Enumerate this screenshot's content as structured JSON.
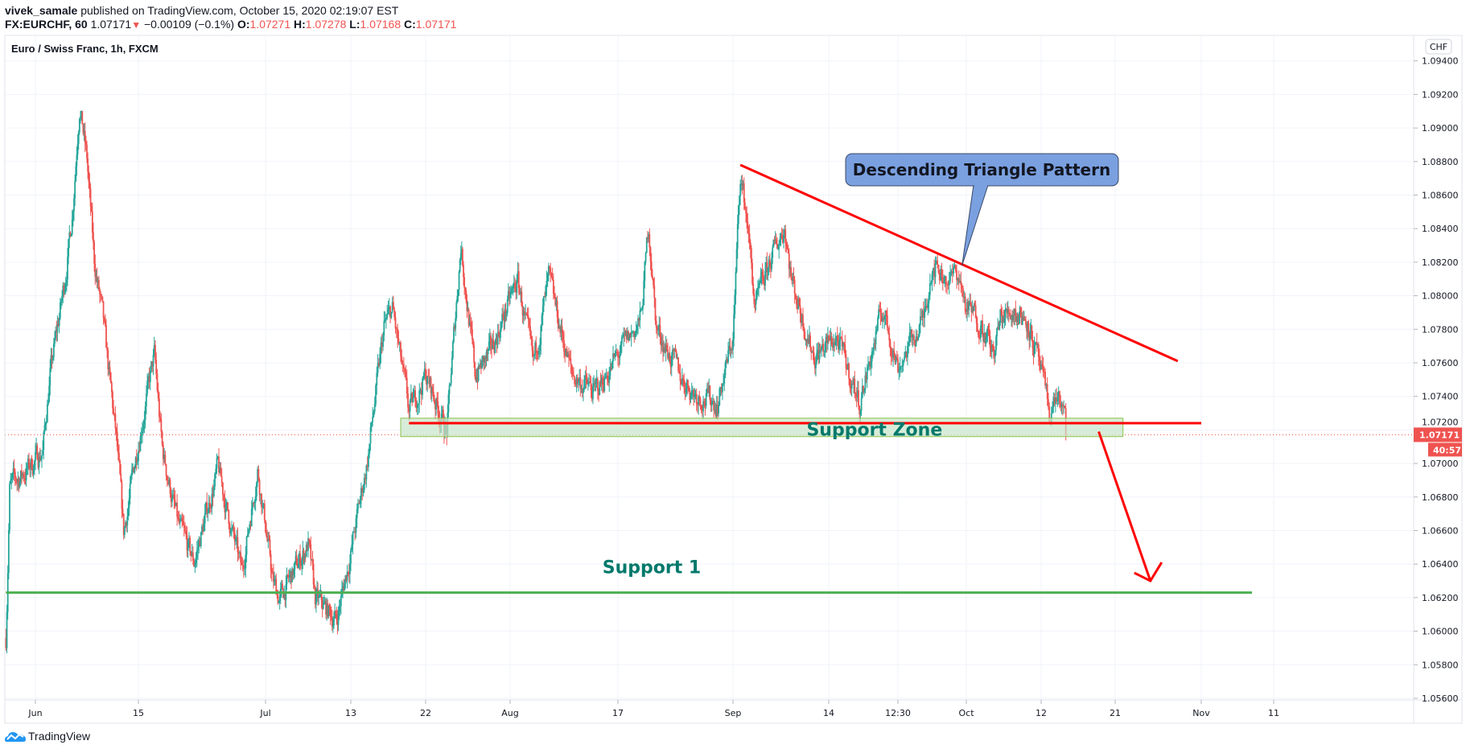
{
  "header": {
    "author": "vivek_samale",
    "published_text": "published on TradingView.com, October 15, 2020 02:19:07 EST",
    "symbol": "FX:EURCHF, 60",
    "last_price": "1.07171",
    "change": "−0.00109 (−0.1%)",
    "change_direction_icon": "triangle-down-icon",
    "open_label": "O:",
    "open": "1.07271",
    "high_label": "H:",
    "high": "1.07278",
    "low_label": "L:",
    "low": "1.07168",
    "close_label": "C:",
    "close": "1.07171"
  },
  "footer": {
    "brand": "TradingView"
  },
  "colors": {
    "up": "#26a69a",
    "down": "#ef5350",
    "grid": "#f0f3fa",
    "annotation_red": "#ff0000",
    "support1_line": "#4caf50",
    "zone_fill": "#c8e6c9",
    "callout_fill": "#7aa0e0",
    "label_green": "#00796b"
  },
  "chart_data": {
    "type": "candlestick",
    "title": "Euro / Swiss Franc, 1h, FXCM",
    "currency_label": "CHF",
    "interval": "1h",
    "ylim": [
      1.056,
      1.094
    ],
    "y_ticks": [
      "1.09400",
      "1.09200",
      "1.09000",
      "1.08800",
      "1.08600",
      "1.08400",
      "1.08200",
      "1.08000",
      "1.07800",
      "1.07600",
      "1.07400",
      "1.07200",
      "1.07000",
      "1.06800",
      "1.06600",
      "1.06400",
      "1.06200",
      "1.06000",
      "1.05800",
      "1.05600"
    ],
    "x_ticks": [
      {
        "label": "Jun",
        "date": "2020-06-01"
      },
      {
        "label": "15",
        "date": "2020-06-15"
      },
      {
        "label": "Jul",
        "date": "2020-07-01"
      },
      {
        "label": "13",
        "date": "2020-07-13"
      },
      {
        "label": "22",
        "date": "2020-07-22"
      },
      {
        "label": "Aug",
        "date": "2020-08-03"
      },
      {
        "label": "17",
        "date": "2020-08-17"
      },
      {
        "label": "Sep",
        "date": "2020-09-01"
      },
      {
        "label": "14",
        "date": "2020-09-14"
      },
      {
        "label": "12:30",
        "date": "2020-09-23"
      },
      {
        "label": "Oct",
        "date": "2020-10-01"
      },
      {
        "label": "12",
        "date": "2020-10-12"
      },
      {
        "label": "21",
        "date": "2020-10-21"
      },
      {
        "label": "Nov",
        "date": "2020-11-01"
      },
      {
        "label": "11",
        "date": "2020-11-11"
      }
    ],
    "grid": true,
    "price_path": [
      [
        "2020-05-28T00:00",
        1.0596
      ],
      [
        "2020-05-28T12:00",
        1.0686
      ],
      [
        "2020-05-31T00:00",
        1.0697
      ],
      [
        "2020-06-02T00:00",
        1.0708
      ],
      [
        "2020-06-03T00:00",
        1.0753
      ],
      [
        "2020-06-05T00:00",
        1.0809
      ],
      [
        "2020-06-06T00:00",
        1.0848
      ],
      [
        "2020-06-07T00:00",
        1.0915
      ],
      [
        "2020-06-08T00:00",
        1.0881
      ],
      [
        "2020-06-09T00:00",
        1.082
      ],
      [
        "2020-06-10T00:00",
        1.0792
      ],
      [
        "2020-06-11T00:00",
        1.0753
      ],
      [
        "2020-06-12T00:00",
        1.0714
      ],
      [
        "2020-06-13T00:00",
        1.0658
      ],
      [
        "2020-06-15T00:00",
        1.0714
      ],
      [
        "2020-06-17T00:00",
        1.0764
      ],
      [
        "2020-06-18T00:00",
        1.0708
      ],
      [
        "2020-06-20T00:00",
        1.0663
      ],
      [
        "2020-06-22T00:00",
        1.0641
      ],
      [
        "2020-06-25T00:00",
        1.0697
      ],
      [
        "2020-06-26T00:00",
        1.0675
      ],
      [
        "2020-06-28T00:00",
        1.0635
      ],
      [
        "2020-06-30T00:00",
        1.0697
      ],
      [
        "2020-07-02T00:00",
        1.063
      ],
      [
        "2020-07-03T00:00",
        1.0619
      ],
      [
        "2020-07-07T00:00",
        1.0652
      ],
      [
        "2020-07-08T00:00",
        1.0619
      ],
      [
        "2020-07-11T00:00",
        1.0607
      ],
      [
        "2020-07-13T00:00",
        1.0647
      ],
      [
        "2020-07-15T00:00",
        1.0702
      ],
      [
        "2020-07-17T00:00",
        1.0781
      ],
      [
        "2020-07-18T00:00",
        1.0792
      ],
      [
        "2020-07-20T00:00",
        1.073
      ],
      [
        "2020-07-22T00:00",
        1.0753
      ],
      [
        "2020-07-23T00:00",
        1.0742
      ],
      [
        "2020-07-25T00:00",
        1.0719
      ],
      [
        "2020-07-27T00:00",
        1.0831
      ],
      [
        "2020-07-29T00:00",
        1.0753
      ],
      [
        "2020-07-31T00:00",
        1.0764
      ],
      [
        "2020-08-04T00:00",
        1.0809
      ],
      [
        "2020-08-06T00:00",
        1.0758
      ],
      [
        "2020-08-08T00:00",
        1.0809
      ],
      [
        "2020-08-11T00:00",
        1.0753
      ],
      [
        "2020-08-14T00:00",
        1.0742
      ],
      [
        "2020-08-17T00:00",
        1.0764
      ],
      [
        "2020-08-20T00:00",
        1.0786
      ],
      [
        "2020-08-21T00:00",
        1.0842
      ],
      [
        "2020-08-22T00:00",
        1.0781
      ],
      [
        "2020-08-25T00:00",
        1.0753
      ],
      [
        "2020-08-27T00:00",
        1.0742
      ],
      [
        "2020-08-30T00:00",
        1.0736
      ],
      [
        "2020-09-01T00:00",
        1.0775
      ],
      [
        "2020-09-02T00:00",
        1.0873
      ],
      [
        "2020-09-03T00:00",
        1.0842
      ],
      [
        "2020-09-04T00:00",
        1.0792
      ],
      [
        "2020-09-06T00:00",
        1.082
      ],
      [
        "2020-09-08T00:00",
        1.0842
      ],
      [
        "2020-09-09T00:00",
        1.0809
      ],
      [
        "2020-09-12T00:00",
        1.0764
      ],
      [
        "2020-09-15T00:00",
        1.0775
      ],
      [
        "2020-09-18T00:00",
        1.0736
      ],
      [
        "2020-09-21T00:00",
        1.0792
      ],
      [
        "2020-09-23T00:00",
        1.0758
      ],
      [
        "2020-09-26T00:00",
        1.0786
      ],
      [
        "2020-09-27T00:00",
        1.082
      ],
      [
        "2020-09-29T00:00",
        1.0809
      ],
      [
        "2020-09-30T00:00",
        1.0814
      ],
      [
        "2020-10-01T00:00",
        1.0792
      ],
      [
        "2020-10-03T00:00",
        1.0786
      ],
      [
        "2020-10-05T00:00",
        1.0764
      ],
      [
        "2020-10-06T00:00",
        1.0786
      ],
      [
        "2020-10-08T00:00",
        1.0792
      ],
      [
        "2020-10-10T00:00",
        1.0786
      ],
      [
        "2020-10-12T00:00",
        1.0753
      ],
      [
        "2020-10-13T00:00",
        1.073
      ],
      [
        "2020-10-14T00:00",
        1.0742
      ],
      [
        "2020-10-14T20:00",
        1.0726
      ],
      [
        "2020-10-15T02:00",
        1.0717
      ]
    ],
    "current_price": {
      "label": "1.07171",
      "value": 1.07171,
      "countdown": "40:57"
    },
    "annotations": {
      "triangle_line": {
        "from": [
          "2020-09-02T00:00",
          1.0878
        ],
        "to": [
          "2020-10-29T00:00",
          1.0761
        ]
      },
      "support_line": {
        "from": [
          "2020-07-20T00:00",
          1.0724
        ],
        "to": [
          "2020-11-01T00:00",
          1.0724
        ]
      },
      "support_zone": {
        "from": [
          "2020-07-19T00:00",
          1.0727
        ],
        "to": [
          "2020-10-22T00:00",
          1.0716
        ],
        "label": "Support Zone"
      },
      "support1_line": {
        "from": [
          "2020-05-28T00:00",
          1.0623
        ],
        "to": [
          "2020-11-08T00:00",
          1.0623
        ],
        "label": "Support 1"
      },
      "arrow": {
        "from": [
          "2020-10-19T00:00",
          1.0719
        ],
        "to": [
          "2020-10-25T12:00",
          1.063
        ]
      },
      "callout": {
        "text": "Descending Triangle Pattern",
        "points_to": [
          "2020-09-30T12:00",
          1.0818
        ]
      }
    }
  }
}
